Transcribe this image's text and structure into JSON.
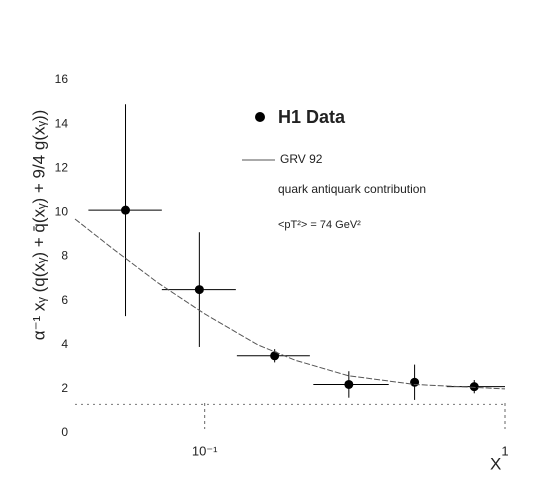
{
  "chart_data": {
    "type": "scatter",
    "xscale": "log",
    "ylabel": "α⁻¹ xᵧ (q(xᵧ) + q̄(xᵧ) + 9/4 g(xᵧ))",
    "xlabel": "X",
    "xlim": [
      0.037,
      1
    ],
    "ylim": [
      0,
      16
    ],
    "xticks": [
      {
        "value": 0.1,
        "label": "10⁻¹"
      },
      1
    ],
    "yticks": [
      0,
      2,
      4,
      6,
      8,
      10,
      12,
      14,
      16
    ],
    "annotations": [
      "quark antiquark contribution",
      "<pT²> = 74 GeV²"
    ],
    "series": [
      {
        "name": "H1 Data",
        "type": "points",
        "color": "#000000",
        "x": [
          0.0545,
          0.096,
          0.171,
          0.302,
          0.5,
          0.79
        ],
        "values": [
          10.1,
          6.5,
          3.5,
          2.2,
          2.3,
          2.1
        ],
        "x_low": [
          0.041,
          0.072,
          0.128,
          0.23,
          0.5,
          0.64
        ],
        "x_high": [
          0.072,
          0.127,
          0.224,
          0.41,
          0.5,
          1.0
        ],
        "yerr": [
          4.8,
          2.6,
          0.3,
          0.6,
          0.8,
          0.3
        ]
      },
      {
        "name": "GRV 92",
        "type": "line",
        "color": "#555555",
        "x": [
          0.037,
          0.05,
          0.07,
          0.1,
          0.15,
          0.2,
          0.3,
          0.5,
          1
        ],
        "values": [
          9.7,
          8.3,
          6.8,
          5.4,
          4.0,
          3.3,
          2.6,
          2.2,
          2.0
        ]
      },
      {
        "type": "dotted",
        "color": "#777777",
        "x": [
          0.037,
          1
        ],
        "values": [
          1.3,
          1.3
        ]
      }
    ]
  }
}
